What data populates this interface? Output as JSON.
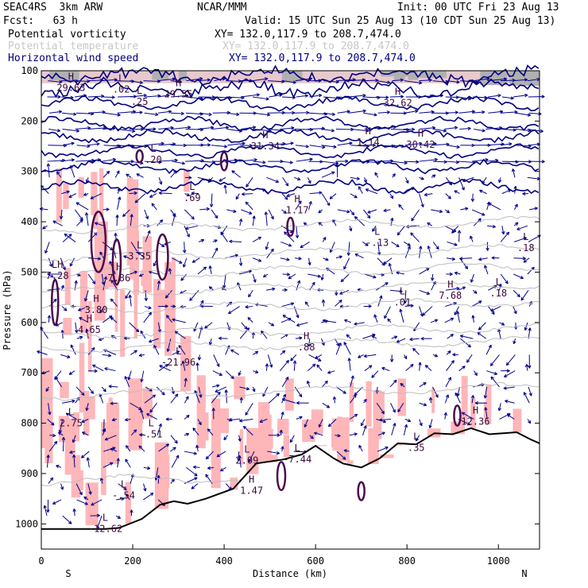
{
  "header": {
    "model": "SEAC4RS  3km ARW",
    "center": "NCAR/MMM",
    "init": "Init: 00 UTC Fri 23 Aug 13",
    "fcst": "Fcst:   63 h",
    "valid": "Valid: 15 UTC Sun 25 Aug 13 (10 CDT Sun 25 Aug 13)",
    "fields": [
      {
        "name": "Potential vorticity",
        "xy": "XY= 132.0,117.9 to 208.7,474.0",
        "color": "#000000"
      },
      {
        "name": "Potential temperature",
        "xy": "XY= 132.0,117.9 to 208.7,474.0",
        "color": "#c8c8c8"
      },
      {
        "name": "Horizontal wind speed",
        "xy": "XY= 132.0,117.9 to 208.7,474.0",
        "color": "#000080"
      }
    ]
  },
  "chart_data": {
    "type": "cross-section",
    "xlabel": "Distance (km)",
    "ylabel": "Pressure (hPa)",
    "xlim": [
      0,
      1090
    ],
    "ylim": [
      1050,
      100
    ],
    "x_ticks": [
      0,
      200,
      400,
      600,
      800,
      1000
    ],
    "y_ticks": [
      100,
      200,
      300,
      400,
      500,
      600,
      700,
      800,
      900,
      1000
    ],
    "x_end_labels": {
      "left": "S",
      "right": "N"
    },
    "terrain_hpa": [
      [
        0,
        1010
      ],
      [
        140,
        1010
      ],
      [
        170,
        1008
      ],
      [
        220,
        990
      ],
      [
        260,
        962
      ],
      [
        290,
        955
      ],
      [
        320,
        960
      ],
      [
        360,
        950
      ],
      [
        420,
        930
      ],
      [
        470,
        880
      ],
      [
        530,
        872
      ],
      [
        570,
        862
      ],
      [
        600,
        845
      ],
      [
        640,
        870
      ],
      [
        660,
        880
      ],
      [
        700,
        888
      ],
      [
        740,
        870
      ],
      [
        780,
        840
      ],
      [
        820,
        842
      ],
      [
        860,
        820
      ],
      [
        900,
        822
      ],
      [
        940,
        810
      ],
      [
        980,
        822
      ],
      [
        1010,
        820
      ],
      [
        1040,
        818
      ],
      [
        1070,
        832
      ],
      [
        1090,
        840
      ]
    ],
    "pv_contours_hpa": [
      [
        110,
        135,
        165,
        205,
        230,
        260,
        290,
        330
      ],
      [
        240,
        255,
        270,
        300
      ]
    ],
    "theta_contours_hpa": [
      415,
      470,
      505,
      540,
      575,
      625,
      652,
      745,
      915
    ],
    "highs_lows": [
      {
        "type": "H",
        "label": "29.63",
        "x": 65,
        "p": 137
      },
      {
        "type": "L",
        "label": ".02",
        "x": 175,
        "p": 140
      },
      {
        "type": "H",
        "label": "29.55",
        "x": 300,
        "p": 150
      },
      {
        "type": "L",
        "label": ".25",
        "x": 215,
        "p": 165
      },
      {
        "type": "H",
        "label": "31.34",
        "x": 490,
        "p": 253
      },
      {
        "type": "H",
        "label": "32.62",
        "x": 780,
        "p": 167
      },
      {
        "type": "H",
        "label": "1.14",
        "x": 715,
        "p": 245
      },
      {
        "type": "H",
        "label": "30.42",
        "x": 830,
        "p": 250
      },
      {
        "type": "L",
        "label": ".20",
        "x": 245,
        "p": 280
      },
      {
        "type": "L",
        "label": ".69",
        "x": 330,
        "p": 356
      },
      {
        "type": "H",
        "label": "1.17",
        "x": 560,
        "p": 380
      },
      {
        "type": "L",
        "label": "-.13",
        "x": 735,
        "p": 445
      },
      {
        "type": "L",
        "label": ".18",
        "x": 1060,
        "p": 455
      },
      {
        "type": "L",
        "label": "3.35",
        "x": 215,
        "p": 472
      },
      {
        "type": "H",
        "label": "7.86",
        "x": 170,
        "p": 515
      },
      {
        "type": "LH",
        "label": "7.28",
        "x": 35,
        "p": 510
      },
      {
        "type": "L",
        "label": ".01",
        "x": 790,
        "p": 563
      },
      {
        "type": "H",
        "label": "7.68",
        "x": 895,
        "p": 550
      },
      {
        "type": "L",
        "label": ".18",
        "x": 1000,
        "p": 545
      },
      {
        "type": "H",
        "label": "3.80",
        "x": 120,
        "p": 578
      },
      {
        "type": "H",
        "label": "4.65",
        "x": 105,
        "p": 618
      },
      {
        "type": "L",
        "label": "-21.96",
        "x": 300,
        "p": 682
      },
      {
        "type": "H",
        "label": ".88",
        "x": 580,
        "p": 652
      },
      {
        "type": "L",
        "label": "2.75",
        "x": 65,
        "p": 803
      },
      {
        "type": "L",
        "label": "-.51",
        "x": 240,
        "p": 825
      },
      {
        "type": "L",
        "label": "2.09",
        "x": 450,
        "p": 877
      },
      {
        "type": "L",
        "label": "-7.44",
        "x": 560,
        "p": 875
      },
      {
        "type": "L",
        "label": ".35",
        "x": 820,
        "p": 852
      },
      {
        "type": "H",
        "label": "12.36",
        "x": 950,
        "p": 800
      },
      {
        "type": "L",
        "label": "-.54",
        "x": 180,
        "p": 947
      },
      {
        "type": "H",
        "label": "1.47",
        "x": 460,
        "p": 937
      },
      {
        "type": "L",
        "label": "-12.62",
        "x": 140,
        "p": 1013
      }
    ]
  }
}
